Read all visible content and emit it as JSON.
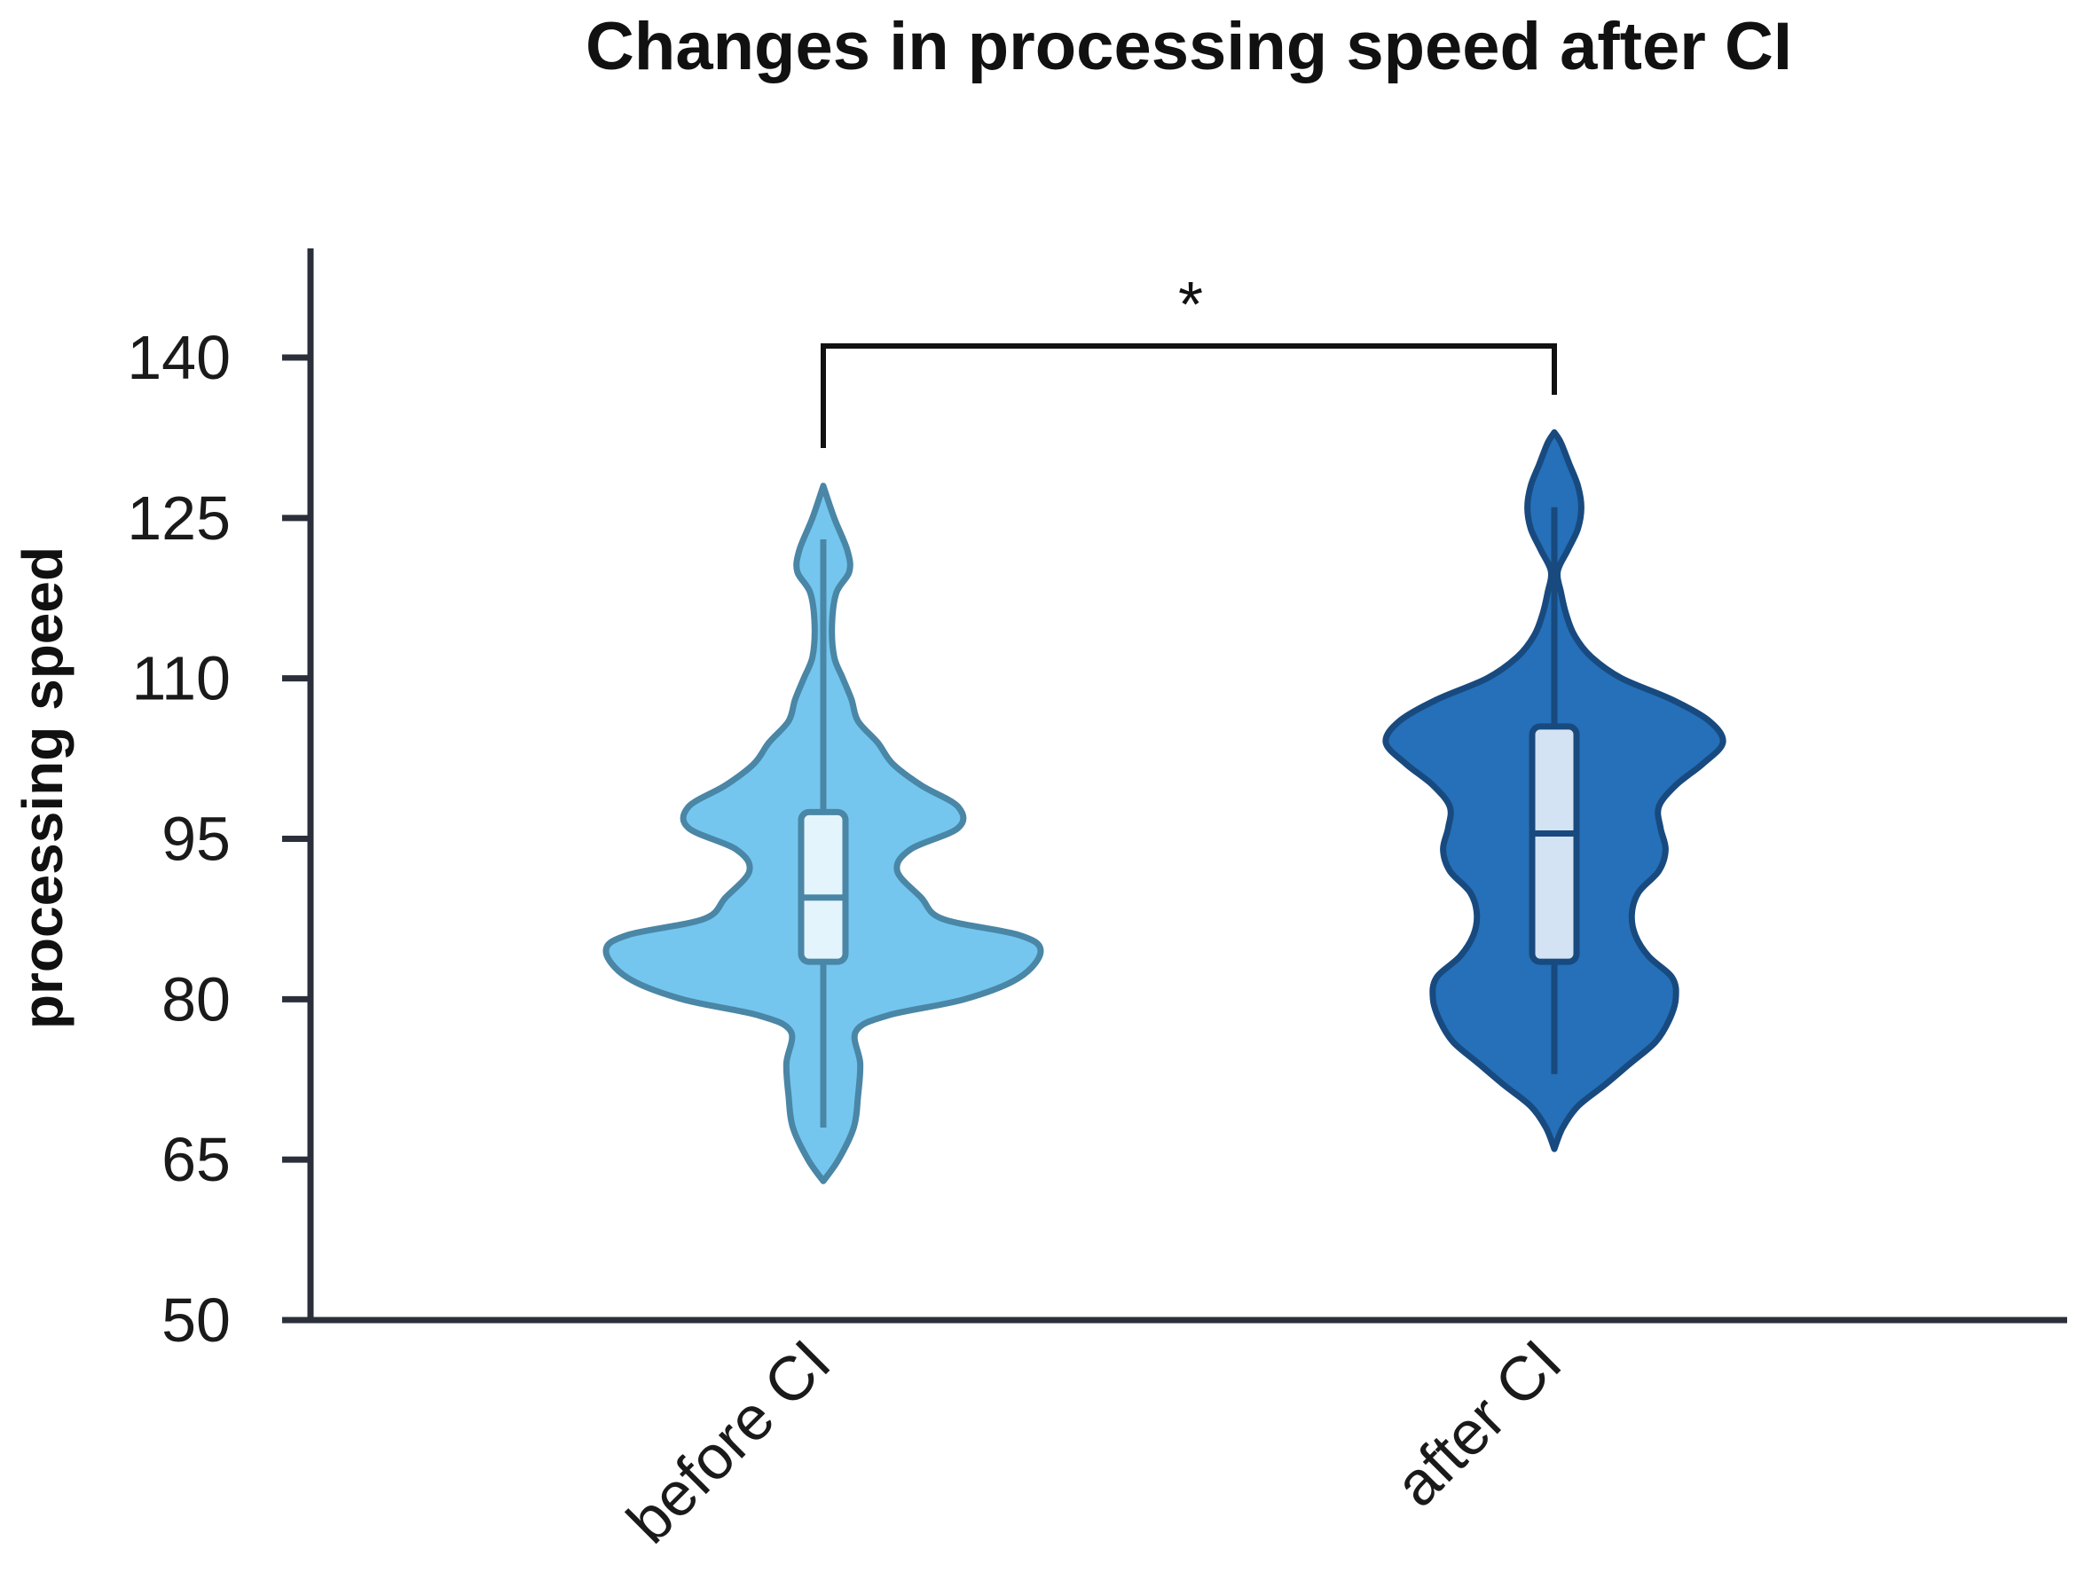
{
  "chart_data": {
    "type": "violin",
    "title": "Changes in processing speed after CI",
    "ylabel": "processing speed",
    "xlabel": "",
    "ylim": [
      50,
      150
    ],
    "yticks": [
      50,
      65,
      80,
      95,
      110,
      125,
      140
    ],
    "categories": [
      "before CI",
      "after CI"
    ],
    "series": [
      {
        "category": "before CI",
        "fill": "#74c6ee",
        "stroke": "#4a86a6",
        "box_fill": "#e4f4fc",
        "min": 68,
        "q1": 83.5,
        "median": 89.5,
        "q3": 97.5,
        "max": 123,
        "violin_top": 128,
        "violin_bottom": 63,
        "density": [
          {
            "y": 63,
            "w": 0.0
          },
          {
            "y": 65,
            "w": 0.07
          },
          {
            "y": 68,
            "w": 0.14
          },
          {
            "y": 71,
            "w": 0.16
          },
          {
            "y": 74,
            "w": 0.17
          },
          {
            "y": 77,
            "w": 0.15
          },
          {
            "y": 78.5,
            "w": 0.3
          },
          {
            "y": 80,
            "w": 0.65
          },
          {
            "y": 82,
            "w": 0.9
          },
          {
            "y": 84.5,
            "w": 1.0
          },
          {
            "y": 86,
            "w": 0.9
          },
          {
            "y": 87.5,
            "w": 0.55
          },
          {
            "y": 89.5,
            "w": 0.45
          },
          {
            "y": 92,
            "w": 0.34
          },
          {
            "y": 94,
            "w": 0.4
          },
          {
            "y": 96,
            "w": 0.62
          },
          {
            "y": 98,
            "w": 0.62
          },
          {
            "y": 100,
            "w": 0.45
          },
          {
            "y": 102,
            "w": 0.32
          },
          {
            "y": 104,
            "w": 0.25
          },
          {
            "y": 106,
            "w": 0.16
          },
          {
            "y": 108,
            "w": 0.13
          },
          {
            "y": 110,
            "w": 0.09
          },
          {
            "y": 112,
            "w": 0.05
          },
          {
            "y": 115,
            "w": 0.04
          },
          {
            "y": 118,
            "w": 0.06
          },
          {
            "y": 120,
            "w": 0.12
          },
          {
            "y": 122,
            "w": 0.11
          },
          {
            "y": 125,
            "w": 0.05
          },
          {
            "y": 128,
            "w": 0.0
          }
        ]
      },
      {
        "category": "after CI",
        "fill": "#2570b8",
        "stroke": "#184a7f",
        "box_fill": "#d3e3f3",
        "min": 73,
        "q1": 83.5,
        "median": 95.5,
        "q3": 105.5,
        "max": 126,
        "violin_top": 133,
        "violin_bottom": 66,
        "density": [
          {
            "y": 66,
            "w": 0.0
          },
          {
            "y": 68,
            "w": 0.05
          },
          {
            "y": 70,
            "w": 0.14
          },
          {
            "y": 72,
            "w": 0.3
          },
          {
            "y": 74,
            "w": 0.45
          },
          {
            "y": 76,
            "w": 0.6
          },
          {
            "y": 78,
            "w": 0.68
          },
          {
            "y": 80,
            "w": 0.72
          },
          {
            "y": 82,
            "w": 0.7
          },
          {
            "y": 84,
            "w": 0.56
          },
          {
            "y": 86,
            "w": 0.48
          },
          {
            "y": 88,
            "w": 0.46
          },
          {
            "y": 90,
            "w": 0.5
          },
          {
            "y": 92,
            "w": 0.62
          },
          {
            "y": 94,
            "w": 0.66
          },
          {
            "y": 96,
            "w": 0.63
          },
          {
            "y": 98,
            "w": 0.62
          },
          {
            "y": 100,
            "w": 0.72
          },
          {
            "y": 102,
            "w": 0.88
          },
          {
            "y": 104,
            "w": 1.0
          },
          {
            "y": 106,
            "w": 0.92
          },
          {
            "y": 108,
            "w": 0.7
          },
          {
            "y": 110,
            "w": 0.4
          },
          {
            "y": 112,
            "w": 0.22
          },
          {
            "y": 114,
            "w": 0.12
          },
          {
            "y": 116,
            "w": 0.07
          },
          {
            "y": 118,
            "w": 0.04
          },
          {
            "y": 120,
            "w": 0.02
          },
          {
            "y": 122,
            "w": 0.08
          },
          {
            "y": 124,
            "w": 0.14
          },
          {
            "y": 126,
            "w": 0.16
          },
          {
            "y": 128,
            "w": 0.14
          },
          {
            "y": 130,
            "w": 0.09
          },
          {
            "y": 132,
            "w": 0.04
          },
          {
            "y": 133,
            "w": 0.0
          }
        ]
      }
    ],
    "annotations": [
      {
        "type": "significance-bracket",
        "between": [
          "before CI",
          "after CI"
        ],
        "label": "*"
      }
    ],
    "grid": false,
    "legend": "none"
  }
}
